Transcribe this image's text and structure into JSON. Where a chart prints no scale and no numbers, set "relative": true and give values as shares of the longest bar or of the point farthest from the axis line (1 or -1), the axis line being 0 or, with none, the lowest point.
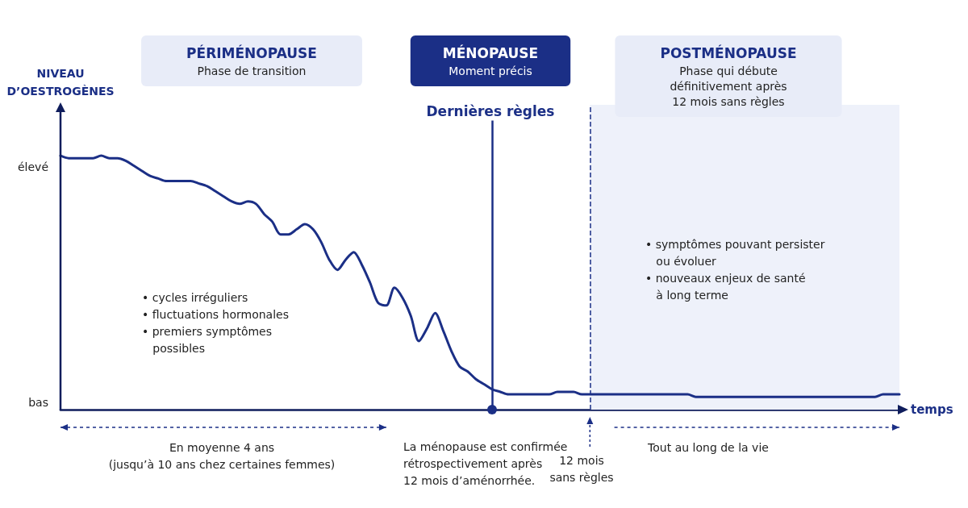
{
  "chart_data": {
    "type": "line",
    "relative": true,
    "xlabel": "temps",
    "categories": [
      null,
      null,
      null,
      null,
      null,
      null,
      null,
      null,
      null,
      null,
      null,
      null,
      null,
      null,
      null,
      null,
      null,
      null,
      null,
      null,
      null,
      null,
      null,
      null,
      null,
      null,
      null,
      null,
      null,
      null,
      null,
      null,
      null,
      null,
      null,
      null,
      null,
      null,
      null,
      null,
      null,
      null,
      null,
      null,
      null,
      null,
      null,
      null,
      null,
      null,
      null,
      null,
      null,
      null,
      null,
      null,
      null,
      null,
      null,
      null,
      null,
      null,
      null,
      null,
      null,
      null,
      null,
      null,
      null,
      null,
      null,
      null,
      null,
      null,
      null,
      null,
      null,
      null,
      null,
      null,
      null,
      null,
      null,
      null,
      null,
      null,
      null,
      null,
      null,
      null,
      null,
      null,
      null,
      null,
      null,
      null,
      null,
      null,
      null,
      null,
      null,
      null,
      null,
      null
    ],
    "series": [
      {
        "color": "#1b2f86",
        "values": [
          1.0,
          0.99,
          0.99,
          0.99,
          0.99,
          1.0,
          0.99,
          0.99,
          0.98,
          0.96,
          0.94,
          0.92,
          0.91,
          0.9,
          0.9,
          0.9,
          0.9,
          0.89,
          0.88,
          0.86,
          0.84,
          0.82,
          0.81,
          0.82,
          0.81,
          0.77,
          0.74,
          0.69,
          0.69,
          0.71,
          0.73,
          0.71,
          0.66,
          0.59,
          0.55,
          0.59,
          0.62,
          0.57,
          0.5,
          0.42,
          0.41,
          0.48,
          0.44,
          0.37,
          0.27,
          0.32,
          0.38,
          0.31,
          0.23,
          0.17,
          0.15,
          0.12,
          0.1,
          0.08,
          0.07,
          0.06,
          0.06,
          0.06,
          0.06,
          0.06,
          0.06,
          0.07,
          0.07,
          0.07,
          0.06,
          0.06,
          0.06,
          0.06,
          0.06,
          0.06,
          0.06,
          0.06,
          0.06,
          0.06,
          0.06,
          0.06,
          0.06,
          0.06,
          0.05,
          0.05,
          0.05,
          0.05,
          0.05,
          0.05,
          0.05,
          0.05,
          0.05,
          0.05,
          0.05,
          0.05,
          0.05,
          0.05,
          0.05,
          0.05,
          0.05,
          0.05,
          0.05,
          0.05,
          0.05,
          0.05,
          0.05,
          0.06,
          0.06,
          0.06
        ]
      }
    ],
    "grid": false,
    "marker": "none",
    "line_style": "solid",
    "annotations": [
      "PÉRIMÉNOPAUSE\nPhase de transition",
      "MÉNOPAUSE\nMoment précis",
      "POSTMÉNOPAUSE\nPhase qui débute\ndéfinitivement après\n12 mois sans règles",
      "• cycles irréguliers\n• fluctuations hormonales\n• premiers symptômes\n   possibles",
      "• symptômes pouvant persister\n   ou évoluer\n• nouveaux enjeux de santé\n   à long terme",
      "La ménopause est confirmée\nrétrospectivement après\n12 mois d’aménorrhée.",
      "Dernières règles",
      "12 mois\nsans règles",
      "En moyenne 4 ans\n(jusqu’à 10 ans chez certaines femmes)",
      "Tout au long de la vie",
      "élevé",
      "bas",
      "NIVEAU\nD’OESTROGÈNES"
    ]
  }
}
